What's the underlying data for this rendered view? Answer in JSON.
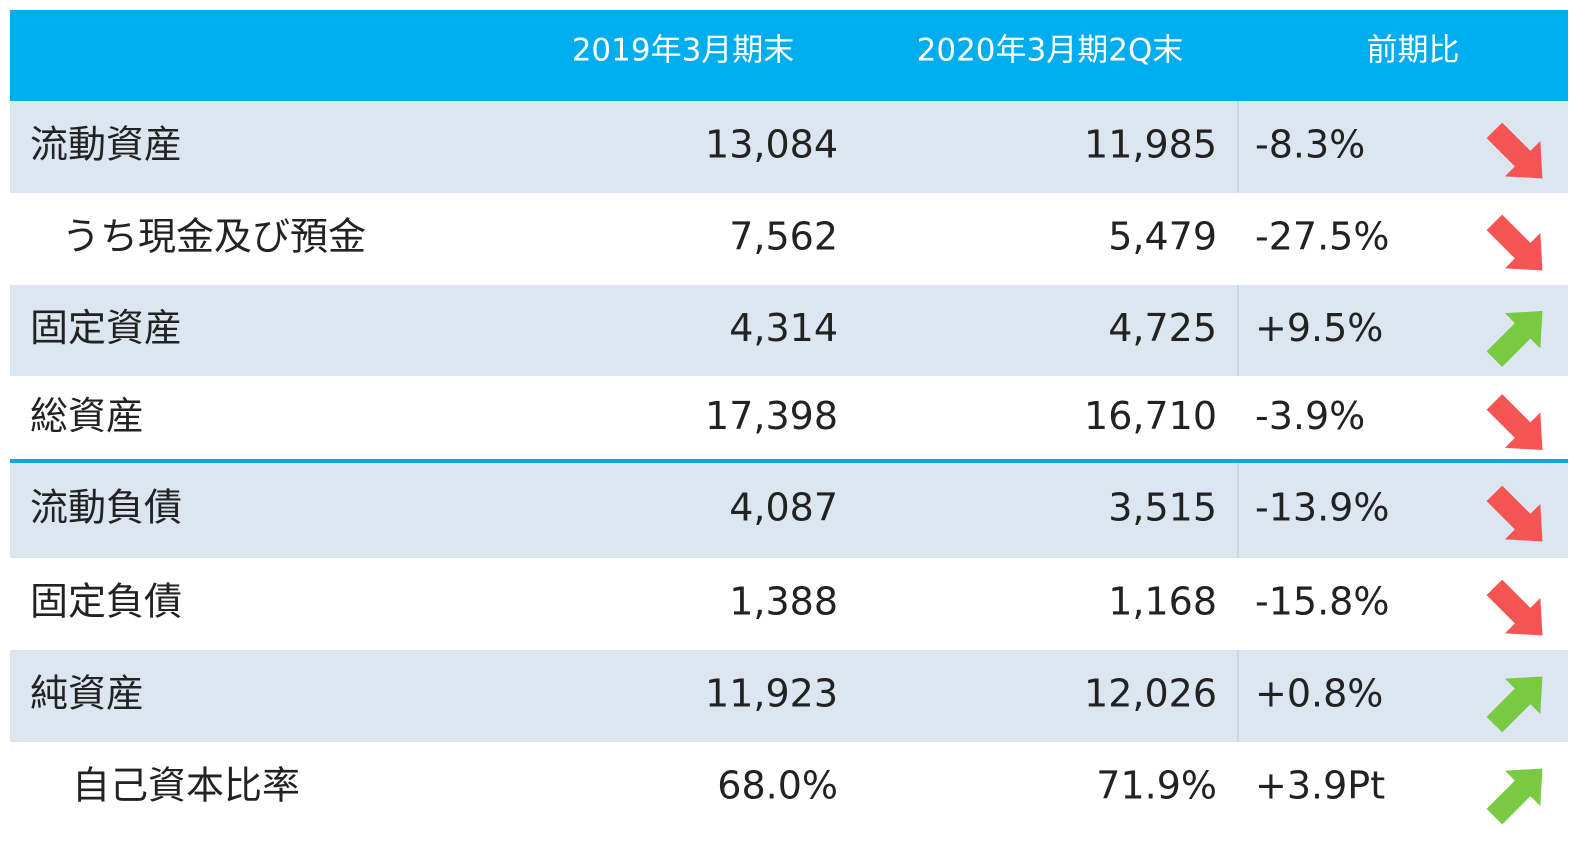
{
  "table": {
    "header": [
      "2019年3月期末",
      "2020年3月期2Q末",
      "前期比"
    ],
    "rows": [
      {
        "label": "流動資産",
        "v2019": "13,084",
        "v2020": "11,985",
        "change": "-8.3%",
        "trend": "down",
        "indent": false
      },
      {
        "label": "うち現金及び預金",
        "v2019": "7,562",
        "v2020": "5,479",
        "change": "-27.5%",
        "trend": "down",
        "indent": true
      },
      {
        "label": "固定資産",
        "v2019": "4,314",
        "v2020": "4,725",
        "change": "+9.5%",
        "trend": "up",
        "indent": false
      },
      {
        "label": "総資産",
        "v2019": "17,398",
        "v2020": "16,710",
        "change": "-3.9%",
        "trend": "down",
        "indent": false
      },
      {
        "label": "流動負債",
        "v2019": "4,087",
        "v2020": "3,515",
        "change": "-13.9%",
        "trend": "down",
        "indent": false
      },
      {
        "label": "固定負債",
        "v2019": "1,388",
        "v2020": "1,168",
        "change": "-15.8%",
        "trend": "down",
        "indent": false
      },
      {
        "label": "純資産",
        "v2019": "11,923",
        "v2020": "12,026",
        "change": "+0.8%",
        "trend": "up",
        "indent": false
      },
      {
        "label": "自己資本比率",
        "v2019": "68.0%",
        "v2020": "71.9%",
        "change": "+3.9Pt",
        "trend": "up",
        "indent": true
      }
    ]
  }
}
